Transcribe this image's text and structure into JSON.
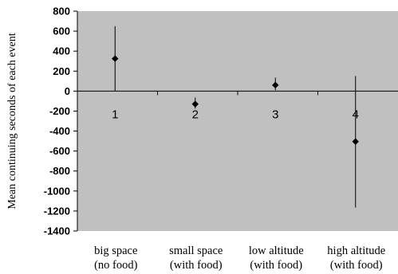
{
  "chart_data": {
    "type": "scatter",
    "title": "",
    "ylabel": "Mean continuing seconds of each event",
    "xlabel": "",
    "ylim": [
      -1400,
      800
    ],
    "yticks": [
      800,
      600,
      400,
      200,
      0,
      -200,
      -400,
      -600,
      -800,
      -1000,
      -1200,
      -1400
    ],
    "grid": false,
    "plot_background": "#c0c0c0",
    "marker_color": "#000000",
    "categories": [
      "1",
      "2",
      "3",
      "4"
    ],
    "category_labels": [
      [
        "big space",
        "(no food)"
      ],
      [
        "small space",
        "(with food)"
      ],
      [
        "low altitude",
        "(with food)"
      ],
      [
        "high altitude",
        "(with food)"
      ]
    ],
    "series": [
      {
        "values": [
          325,
          -130,
          60,
          -505
        ],
        "error_low": [
          0,
          -175,
          10,
          -1165
        ],
        "error_high": [
          650,
          -65,
          135,
          150
        ]
      }
    ]
  }
}
